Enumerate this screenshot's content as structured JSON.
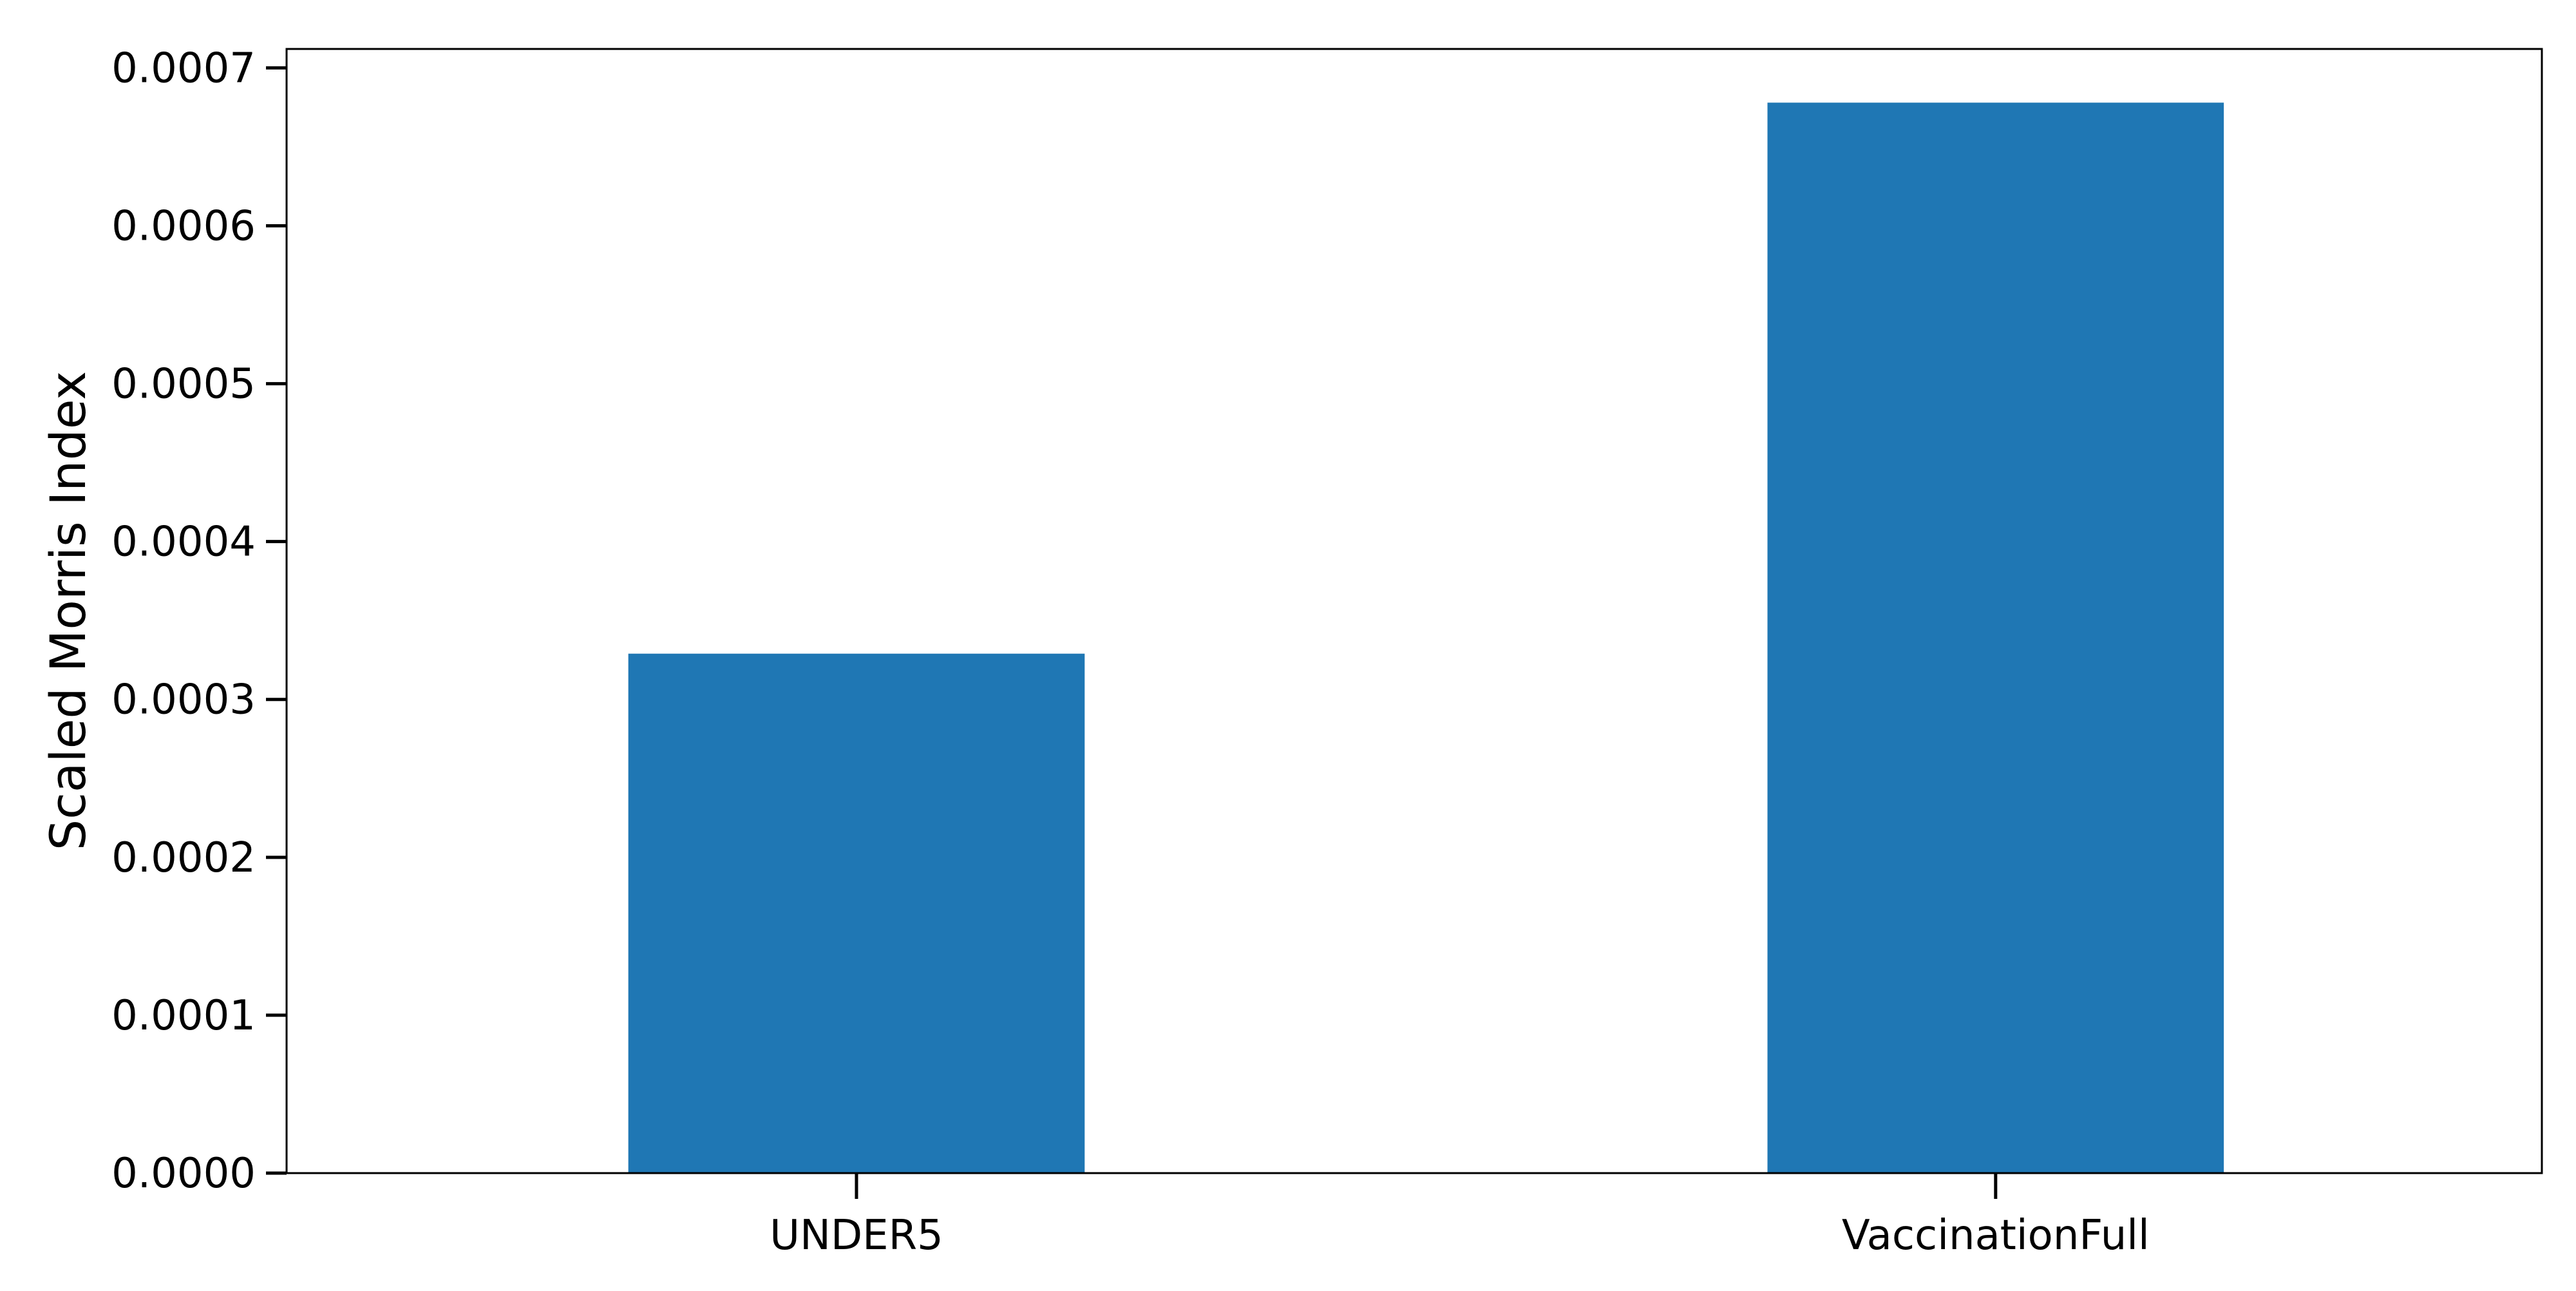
{
  "chart_data": {
    "type": "bar",
    "categories": [
      "UNDER5",
      "VaccinationFull"
    ],
    "values": [
      0.000329,
      0.000678
    ],
    "title": "",
    "xlabel": "",
    "ylabel": "Scaled Morris Index",
    "ylim": [
      0,
      0.000712
    ],
    "yticks": [
      0.0,
      0.0001,
      0.0002,
      0.0003,
      0.0004,
      0.0005,
      0.0006,
      0.0007
    ],
    "ytick_labels": [
      "0.0000",
      "0.0001",
      "0.0002",
      "0.0003",
      "0.0004",
      "0.0005",
      "0.0006",
      "0.0007"
    ],
    "grid": false,
    "legend": "none",
    "bar_color": "#1f77b4"
  }
}
